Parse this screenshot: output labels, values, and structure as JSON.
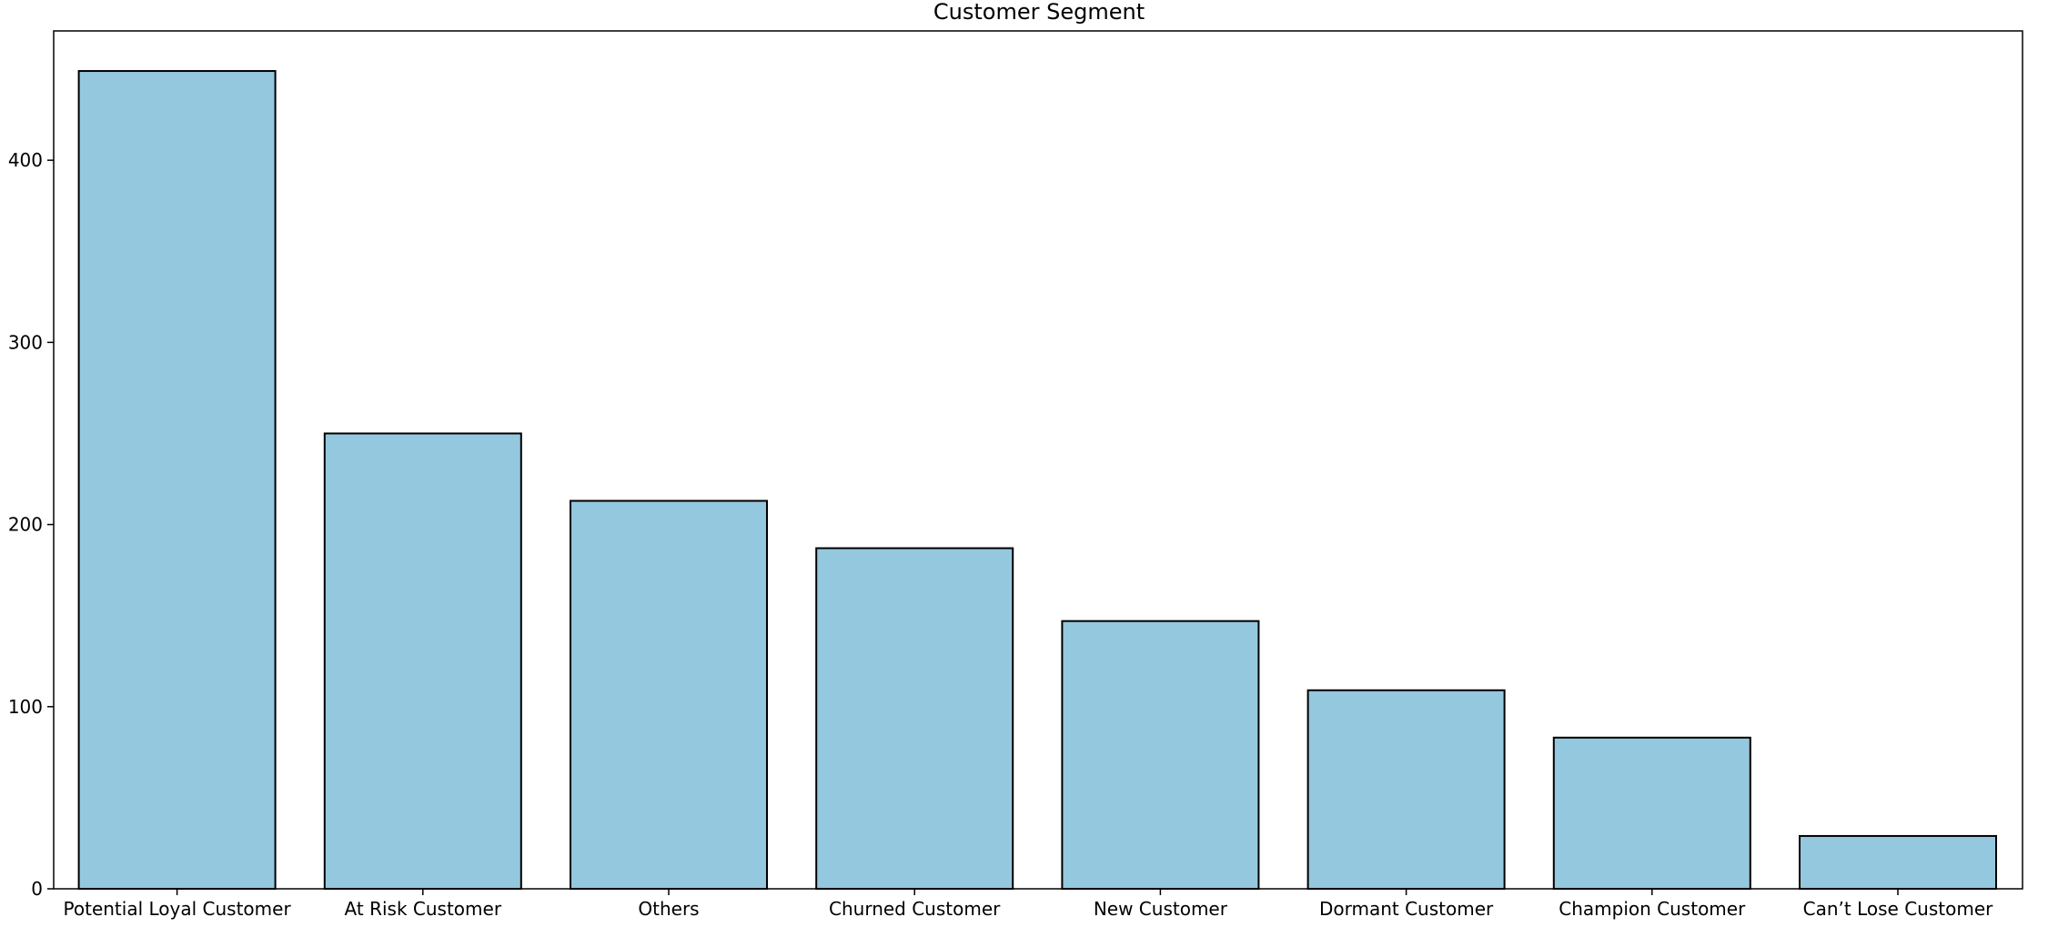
{
  "chart_data": {
    "type": "bar",
    "title": "Customer Segment",
    "xlabel": "",
    "ylabel": "",
    "categories": [
      "Potential Loyal Customer",
      "At Risk Customer",
      "Others",
      "Churned Customer",
      "New Customer",
      "Dormant Customer",
      "Champion Customer",
      "Can’t Lose Customer"
    ],
    "values": [
      449,
      250,
      213,
      187,
      147,
      109,
      83,
      29
    ],
    "ylim": [
      0,
      471
    ],
    "yticks": [
      0,
      100,
      200,
      300,
      400
    ],
    "grid": false,
    "legend": "none",
    "bar_color": "#94c8de",
    "edge_color": "#000000"
  }
}
